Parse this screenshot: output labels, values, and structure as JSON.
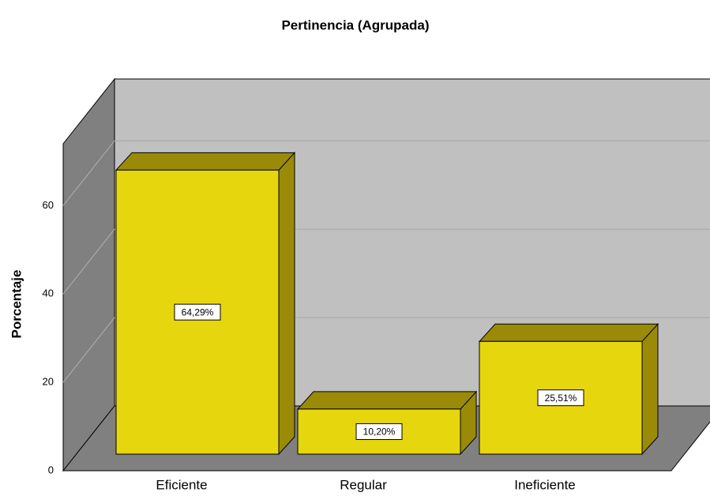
{
  "chart_data": {
    "type": "bar3d",
    "title": "Pertinencia (Agrupada)",
    "y_label": "Porcentaje",
    "categories": [
      "Eficiente",
      "Regular",
      "Ineficiente"
    ],
    "values": [
      64.29,
      10.2,
      25.51
    ],
    "value_labels": [
      "64,29%",
      "10,20%",
      "25,51%"
    ],
    "color": "#e6d60e",
    "ylim": [
      0,
      74
    ],
    "yticks": [
      0,
      20,
      40,
      60
    ],
    "grid": true
  }
}
